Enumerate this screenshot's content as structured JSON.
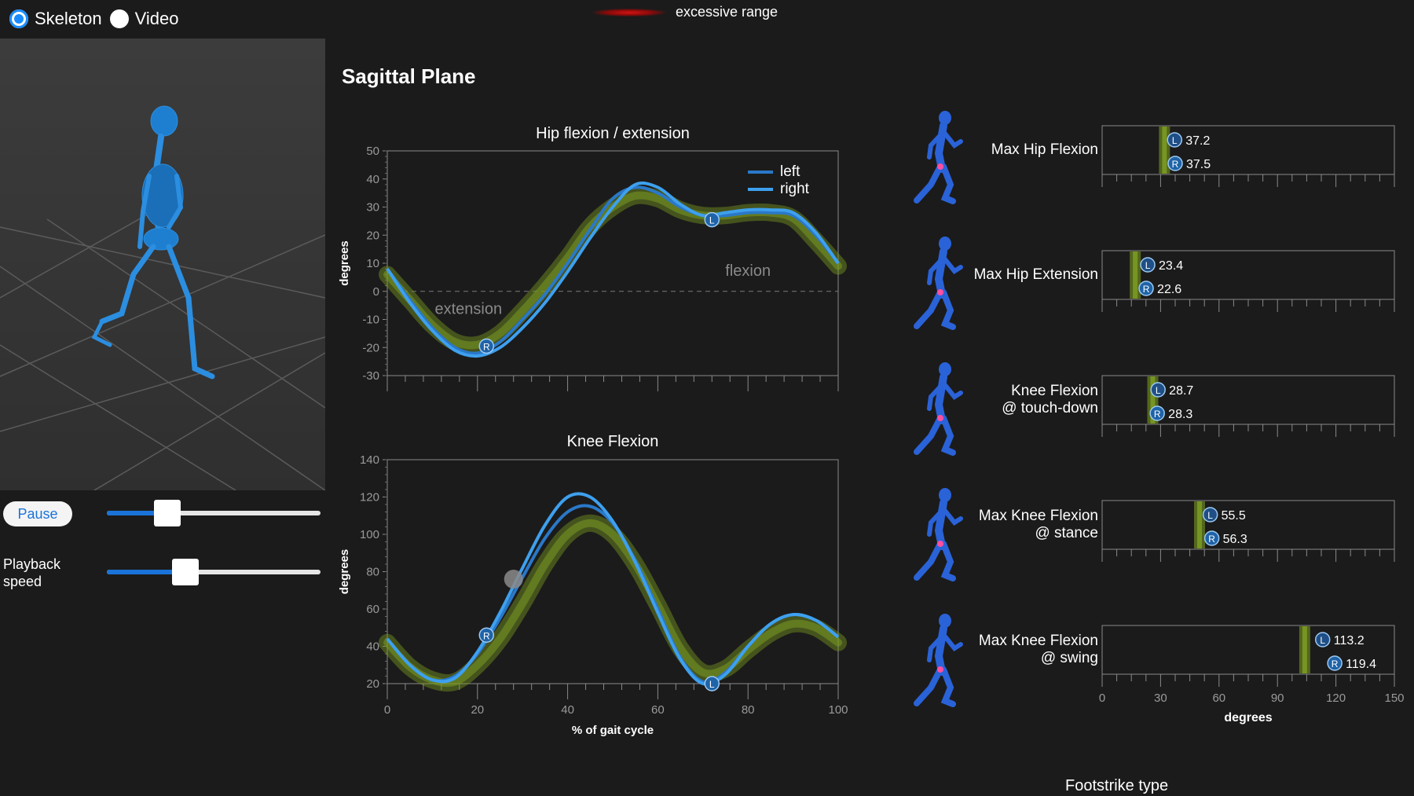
{
  "mode": {
    "options": [
      {
        "label": "Skeleton",
        "selected": true
      },
      {
        "label": "Video",
        "selected": false
      }
    ]
  },
  "legend": {
    "excessive_label": "excessive range",
    "excessive_color": "#d11414"
  },
  "controls": {
    "pause_label": "Pause",
    "progress": 0.25,
    "speed_label_line1": "Playback",
    "speed_label_line2": "speed",
    "speed": 0.35
  },
  "section_title": "Sagittal Plane",
  "colors": {
    "accent": "#1a8cff",
    "left_line": "#2a78c8",
    "right_line": "#3ea0ee",
    "norm_band": "#7a9a22"
  },
  "chart_data": [
    {
      "type": "line",
      "title": "Hip flexion / extension",
      "ylabel": "degrees",
      "xlim": [
        0,
        100
      ],
      "ylim": [
        -30,
        50
      ],
      "yticks": [
        50,
        40,
        30,
        20,
        10,
        0,
        -10,
        -20,
        -30
      ],
      "legend": [
        "left",
        "right"
      ],
      "annotations": [
        "flexion",
        "extension"
      ],
      "x": [
        0,
        5,
        10,
        15,
        20,
        25,
        30,
        35,
        40,
        45,
        50,
        55,
        60,
        65,
        70,
        75,
        80,
        85,
        90,
        95,
        100
      ],
      "series": [
        {
          "name": "left",
          "values": [
            8,
            -3,
            -13,
            -20,
            -22,
            -18,
            -10,
            -1,
            10,
            22,
            33,
            37,
            35,
            30,
            27,
            27,
            28,
            28,
            27,
            20,
            10
          ]
        },
        {
          "name": "right",
          "values": [
            8,
            -4,
            -14,
            -21,
            -23,
            -20,
            -13,
            -4,
            7,
            19,
            30,
            38,
            37,
            31,
            27,
            28,
            29,
            29,
            28,
            21,
            10
          ]
        },
        {
          "name": "normal range",
          "values": [
            6,
            -3,
            -12,
            -18,
            -19,
            -15,
            -7,
            2,
            12,
            23,
            30,
            34,
            33,
            29,
            27,
            27,
            28,
            28,
            26,
            18,
            9
          ]
        }
      ],
      "markers": [
        {
          "label": "R",
          "x": 22,
          "y": -19.5
        },
        {
          "label": "L",
          "x": 72,
          "y": 25.5
        }
      ]
    },
    {
      "type": "line",
      "title": "Knee Flexion",
      "xlabel": "% of gait cycle",
      "ylabel": "degrees",
      "xlim": [
        0,
        100
      ],
      "ylim": [
        20,
        140
      ],
      "xticks": [
        0,
        20,
        40,
        60,
        80,
        100
      ],
      "yticks": [
        140,
        120,
        100,
        80,
        60,
        40,
        20
      ],
      "x": [
        0,
        5,
        10,
        15,
        20,
        25,
        30,
        35,
        40,
        45,
        50,
        55,
        60,
        65,
        70,
        75,
        80,
        85,
        90,
        95,
        100
      ],
      "series": [
        {
          "name": "left",
          "values": [
            44,
            30,
            22,
            24,
            36,
            55,
            77,
            98,
            112,
            115,
            106,
            86,
            60,
            34,
            21,
            26,
            40,
            52,
            57,
            54,
            45
          ]
        },
        {
          "name": "right",
          "values": [
            44,
            30,
            22,
            23,
            37,
            58,
            82,
            105,
            120,
            120,
            107,
            85,
            58,
            33,
            20,
            25,
            40,
            52,
            57,
            54,
            45
          ]
        },
        {
          "name": "normal range",
          "values": [
            42,
            29,
            22,
            21,
            30,
            44,
            63,
            84,
            100,
            106,
            100,
            84,
            62,
            39,
            26,
            28,
            38,
            47,
            52,
            50,
            42
          ]
        }
      ],
      "markers": [
        {
          "label": "R",
          "x": 22,
          "y": 46
        },
        {
          "label": "L",
          "x": 72,
          "y": 20
        },
        {
          "label": "",
          "x": 28,
          "y": 76
        }
      ]
    },
    {
      "type": "bar",
      "xlabel": "degrees",
      "xlim": [
        0,
        150
      ],
      "xticks": [
        0,
        30,
        60,
        90,
        120,
        150
      ],
      "metrics": [
        {
          "label_line1": "Max Hip Flexion",
          "label_line2": "",
          "L": 37.2,
          "R": 37.5,
          "norm": 32
        },
        {
          "label_line1": "Max Hip Extension",
          "label_line2": "",
          "L": 23.4,
          "R": 22.6,
          "norm": 17
        },
        {
          "label_line1": "Knee Flexion",
          "label_line2": "@ touch-down",
          "L": 28.7,
          "R": 28.3,
          "norm": 26
        },
        {
          "label_line1": "Max Knee Flexion",
          "label_line2": "@ stance",
          "L": 55.5,
          "R": 56.3,
          "norm": 50
        },
        {
          "label_line1": "Max Knee Flexion",
          "label_line2": "@ swing",
          "L": 113.2,
          "R": 119.4,
          "norm": 104
        }
      ]
    }
  ],
  "footstrike_title": "Footstrike type"
}
